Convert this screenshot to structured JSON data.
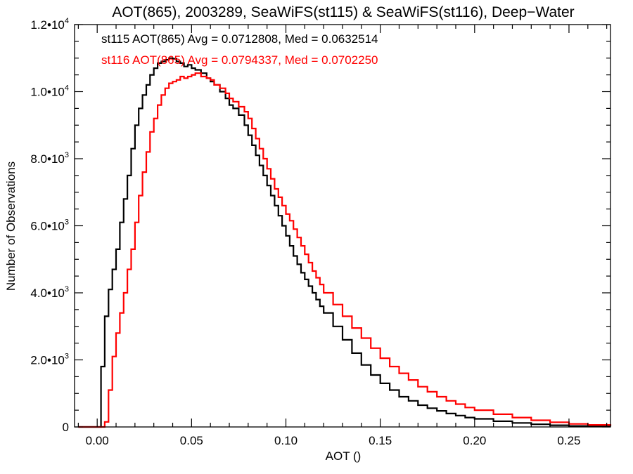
{
  "chart_data": {
    "type": "line",
    "title": "AOT(865), 2003289, SeaWiFS(st115) & SeaWiFS(st116), Deep−Water",
    "xlabel": "AOT ()",
    "ylabel": "Number of Observations",
    "xlim": [
      -0.012,
      0.272
    ],
    "ylim": [
      0,
      12000
    ],
    "x_ticks": [
      {
        "value": 0.0,
        "label": "0.00"
      },
      {
        "value": 0.05,
        "label": "0.05"
      },
      {
        "value": 0.1,
        "label": "0.10"
      },
      {
        "value": 0.15,
        "label": "0.15"
      },
      {
        "value": 0.2,
        "label": "0.20"
      },
      {
        "value": 0.25,
        "label": "0.25"
      }
    ],
    "y_ticks": [
      {
        "value": 0,
        "label": "0",
        "exp": ""
      },
      {
        "value": 2000,
        "label": "2.0•10",
        "exp": "3"
      },
      {
        "value": 4000,
        "label": "4.0•10",
        "exp": "3"
      },
      {
        "value": 6000,
        "label": "6.0•10",
        "exp": "3"
      },
      {
        "value": 8000,
        "label": "8.0•10",
        "exp": "3"
      },
      {
        "value": 10000,
        "label": "1.0•10",
        "exp": "4"
      },
      {
        "value": 12000,
        "label": "1.2•10",
        "exp": "4"
      }
    ],
    "grid": false,
    "step": true,
    "series": [
      {
        "name": "st115",
        "label": "st115 AOT(865) Avg = 0.0712808, Med = 0.0632514",
        "color": "#000000",
        "x": [
          -0.01,
          0.002,
          0.004,
          0.006,
          0.008,
          0.01,
          0.012,
          0.014,
          0.016,
          0.018,
          0.02,
          0.022,
          0.024,
          0.026,
          0.028,
          0.03,
          0.032,
          0.034,
          0.036,
          0.038,
          0.04,
          0.042,
          0.044,
          0.046,
          0.048,
          0.05,
          0.052,
          0.055,
          0.058,
          0.06,
          0.062,
          0.065,
          0.068,
          0.07,
          0.072,
          0.075,
          0.078,
          0.08,
          0.082,
          0.084,
          0.086,
          0.088,
          0.09,
          0.092,
          0.094,
          0.096,
          0.098,
          0.1,
          0.102,
          0.104,
          0.106,
          0.108,
          0.11,
          0.112,
          0.114,
          0.116,
          0.118,
          0.12,
          0.125,
          0.13,
          0.135,
          0.14,
          0.145,
          0.15,
          0.155,
          0.16,
          0.165,
          0.17,
          0.175,
          0.18,
          0.185,
          0.19,
          0.195,
          0.2,
          0.21,
          0.22,
          0.23,
          0.24,
          0.25,
          0.26,
          0.272
        ],
        "y": [
          0,
          1800,
          3300,
          4100,
          4700,
          5300,
          6100,
          6800,
          7500,
          8300,
          9000,
          9500,
          9900,
          10200,
          10500,
          10700,
          10850,
          10900,
          10950,
          11000,
          10980,
          10900,
          10850,
          10750,
          10800,
          10700,
          10650,
          10550,
          10400,
          10300,
          10200,
          10000,
          9800,
          9600,
          9500,
          9300,
          9000,
          8700,
          8400,
          8100,
          7800,
          7500,
          7200,
          6900,
          6600,
          6300,
          6000,
          5700,
          5400,
          5100,
          4850,
          4600,
          4400,
          4200,
          4000,
          3800,
          3600,
          3400,
          3000,
          2600,
          2200,
          1850,
          1550,
          1300,
          1100,
          900,
          780,
          650,
          560,
          480,
          400,
          340,
          280,
          240,
          170,
          120,
          80,
          50,
          30,
          20,
          15
        ]
      },
      {
        "name": "st116",
        "label": "st116 AOT(865) Avg = 0.0794337, Med = 0.0702250",
        "color": "#ff0000",
        "x": [
          -0.01,
          0.004,
          0.006,
          0.008,
          0.01,
          0.012,
          0.014,
          0.016,
          0.018,
          0.02,
          0.022,
          0.024,
          0.026,
          0.028,
          0.03,
          0.032,
          0.034,
          0.036,
          0.038,
          0.04,
          0.042,
          0.044,
          0.046,
          0.048,
          0.05,
          0.052,
          0.055,
          0.058,
          0.06,
          0.062,
          0.065,
          0.068,
          0.07,
          0.072,
          0.075,
          0.078,
          0.08,
          0.082,
          0.084,
          0.086,
          0.088,
          0.09,
          0.092,
          0.094,
          0.096,
          0.098,
          0.1,
          0.102,
          0.104,
          0.106,
          0.108,
          0.11,
          0.112,
          0.114,
          0.116,
          0.118,
          0.12,
          0.125,
          0.13,
          0.135,
          0.14,
          0.145,
          0.15,
          0.155,
          0.16,
          0.165,
          0.17,
          0.175,
          0.18,
          0.185,
          0.19,
          0.195,
          0.2,
          0.21,
          0.22,
          0.23,
          0.24,
          0.25,
          0.26,
          0.272
        ],
        "y": [
          0,
          150,
          1100,
          2100,
          2800,
          3400,
          4000,
          4700,
          5300,
          6100,
          6900,
          7600,
          8200,
          8800,
          9200,
          9600,
          9900,
          10100,
          10250,
          10300,
          10350,
          10450,
          10400,
          10450,
          10500,
          10550,
          10450,
          10400,
          10350,
          10200,
          10100,
          9950,
          9800,
          9700,
          9550,
          9400,
          9200,
          8900,
          8600,
          8300,
          8000,
          7700,
          7400,
          7100,
          6850,
          6600,
          6350,
          6150,
          5900,
          5650,
          5400,
          5150,
          4900,
          4650,
          4450,
          4250,
          4000,
          3650,
          3300,
          2950,
          2650,
          2350,
          2050,
          1800,
          1600,
          1400,
          1200,
          1050,
          900,
          780,
          680,
          580,
          500,
          380,
          280,
          200,
          140,
          90,
          60,
          40
        ]
      }
    ]
  }
}
